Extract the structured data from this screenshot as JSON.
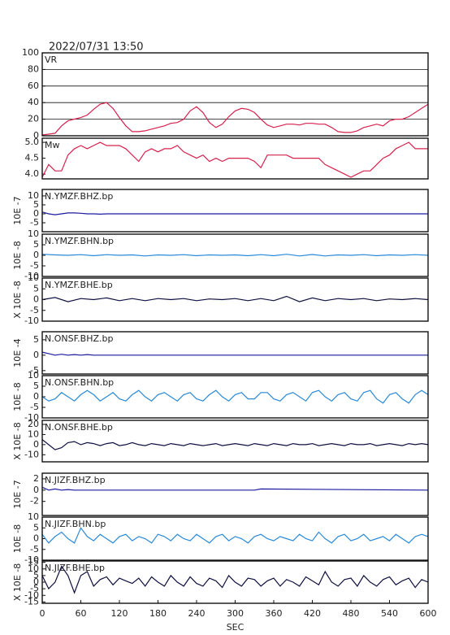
{
  "header": "2022/07/31 13:50",
  "chart_data": [
    {
      "type": "line",
      "title": "VR",
      "color": "#d6204e",
      "grid": true,
      "xlim": [
        0,
        600
      ],
      "ylim": [
        0,
        100
      ],
      "yticks": [
        0,
        20,
        40,
        60,
        80,
        100
      ],
      "x": [
        0,
        10,
        20,
        30,
        40,
        50,
        60,
        70,
        80,
        90,
        100,
        110,
        120,
        130,
        140,
        150,
        160,
        170,
        180,
        190,
        200,
        210,
        220,
        230,
        240,
        250,
        260,
        270,
        280,
        290,
        300,
        310,
        320,
        330,
        340,
        350,
        360,
        370,
        380,
        390,
        400,
        410,
        420,
        430,
        440,
        450,
        460,
        470,
        480,
        490,
        500,
        510,
        520,
        530,
        540,
        550,
        560,
        570,
        580,
        590,
        600
      ],
      "values": [
        1,
        2,
        3,
        12,
        18,
        20,
        22,
        25,
        32,
        38,
        40,
        33,
        22,
        12,
        5,
        5,
        6,
        8,
        10,
        12,
        15,
        16,
        20,
        30,
        35,
        28,
        16,
        10,
        14,
        23,
        30,
        33,
        32,
        28,
        20,
        13,
        10,
        12,
        14,
        14,
        13,
        15,
        15,
        14,
        14,
        10,
        5,
        4,
        4,
        6,
        10,
        12,
        14,
        12,
        18,
        20,
        20,
        23,
        28,
        33,
        38
      ]
    },
    {
      "type": "line",
      "title": "Mw",
      "color": "#d6204e",
      "xlim": [
        0,
        600
      ],
      "ylim": [
        3.85,
        5.13
      ],
      "yticks": [
        {
          "value": 4,
          "label": "4.0"
        },
        4.5,
        {
          "value": 5,
          "label": "5.0"
        }
      ],
      "x": [
        0,
        10,
        20,
        30,
        40,
        50,
        60,
        70,
        80,
        90,
        100,
        110,
        120,
        130,
        140,
        150,
        160,
        170,
        180,
        190,
        200,
        210,
        220,
        230,
        240,
        250,
        260,
        270,
        280,
        290,
        300,
        310,
        320,
        330,
        340,
        350,
        360,
        370,
        380,
        390,
        400,
        410,
        420,
        430,
        440,
        450,
        460,
        470,
        480,
        490,
        500,
        510,
        520,
        530,
        540,
        550,
        560,
        570,
        580,
        590,
        600
      ],
      "values": [
        3.9,
        4.3,
        4.1,
        4.1,
        4.6,
        4.8,
        4.9,
        4.8,
        4.9,
        5.0,
        4.9,
        4.9,
        4.9,
        4.8,
        4.6,
        4.4,
        4.7,
        4.8,
        4.7,
        4.8,
        4.8,
        4.9,
        4.7,
        4.6,
        4.5,
        4.6,
        4.4,
        4.5,
        4.4,
        4.5,
        4.5,
        4.5,
        4.5,
        4.4,
        4.2,
        4.6,
        4.6,
        4.6,
        4.6,
        4.5,
        4.5,
        4.5,
        4.5,
        4.5,
        4.3,
        4.2,
        4.1,
        4.0,
        3.9,
        4.0,
        4.1,
        4.1,
        4.3,
        4.5,
        4.6,
        4.8,
        4.9,
        5.0,
        4.8,
        4.8,
        4.8
      ]
    },
    {
      "type": "line",
      "title": "N.YMZF.BHZ.bp",
      "ylabel": "10E -7",
      "color": "#1a1aa0",
      "xlim": [
        0,
        600
      ],
      "ylim": [
        -10,
        13.6
      ],
      "yticks": [
        -5,
        0,
        5,
        10
      ],
      "x": [
        0,
        10,
        20,
        30,
        40,
        50,
        60,
        70,
        80,
        90,
        100,
        600
      ],
      "values": [
        1,
        0,
        -0.5,
        0,
        0.5,
        0.5,
        0.3,
        0,
        0,
        -0.2,
        0,
        0
      ]
    },
    {
      "type": "line",
      "title": "N.YMZF.BHN.bp",
      "ylabel": "10E -8",
      "color": "#2a8ad8",
      "xlim": [
        0,
        600
      ],
      "ylim": [
        -10,
        10
      ],
      "yticks": [
        -10,
        -5,
        0,
        5,
        10
      ],
      "x": [
        0,
        20,
        40,
        60,
        80,
        100,
        120,
        140,
        160,
        180,
        200,
        220,
        240,
        260,
        280,
        300,
        320,
        340,
        360,
        380,
        400,
        420,
        440,
        460,
        480,
        500,
        520,
        540,
        560,
        580,
        600
      ],
      "values": [
        0.5,
        0.2,
        0,
        0.3,
        -0.2,
        0.3,
        0,
        0.2,
        -0.3,
        0.2,
        0,
        0.3,
        -0.2,
        0.2,
        0,
        0.2,
        -0.2,
        0.3,
        -0.2,
        0.5,
        -0.3,
        0.4,
        -0.3,
        0.2,
        0,
        0.3,
        -0.2,
        0.2,
        0,
        0.3,
        0
      ]
    },
    {
      "type": "line",
      "title": "N.YMZF.BHE.bp",
      "ylabel": "X 10E -8",
      "color": "#101040",
      "xlim": [
        0,
        600
      ],
      "ylim": [
        -10,
        10
      ],
      "yticks": [
        -10,
        -5,
        0,
        5,
        10
      ],
      "x": [
        0,
        20,
        40,
        60,
        80,
        100,
        120,
        140,
        160,
        180,
        200,
        220,
        240,
        260,
        280,
        300,
        320,
        340,
        360,
        380,
        400,
        420,
        440,
        460,
        480,
        500,
        520,
        540,
        560,
        580,
        600
      ],
      "values": [
        0,
        1,
        -1,
        0.5,
        0,
        0.8,
        -0.5,
        0.5,
        -0.5,
        0.5,
        0,
        0.5,
        -0.5,
        0.3,
        0,
        0.5,
        -0.5,
        0.5,
        -0.5,
        1.5,
        -1,
        0.8,
        -0.5,
        0.5,
        0,
        0.5,
        -0.5,
        0.3,
        0,
        0.5,
        0
      ]
    },
    {
      "type": "line",
      "title": "N.ONSF.BHZ.bp",
      "ylabel": "10E -4",
      "color": "#1a1aa0",
      "xlim": [
        0,
        600
      ],
      "ylim": [
        -6.1,
        7.6
      ],
      "yticks": [
        -5,
        0,
        5
      ],
      "x": [
        0,
        10,
        20,
        30,
        40,
        50,
        60,
        70,
        80,
        90,
        600
      ],
      "values": [
        1,
        0.5,
        0,
        0.3,
        0,
        0.2,
        0,
        0.2,
        0,
        0,
        0
      ]
    },
    {
      "type": "line",
      "title": "N.ONSF.BHN.bp",
      "ylabel": "10E -8",
      "color": "#2a8ad8",
      "xlim": [
        0,
        600
      ],
      "ylim": [
        -10,
        10
      ],
      "yticks": [
        -10,
        -5,
        0,
        5,
        10
      ],
      "x": [
        0,
        10,
        20,
        30,
        40,
        50,
        60,
        70,
        80,
        90,
        100,
        110,
        120,
        130,
        140,
        150,
        160,
        170,
        180,
        190,
        200,
        210,
        220,
        230,
        240,
        250,
        260,
        270,
        280,
        290,
        300,
        310,
        320,
        330,
        340,
        350,
        360,
        370,
        380,
        390,
        400,
        410,
        420,
        430,
        440,
        450,
        460,
        470,
        480,
        490,
        500,
        510,
        520,
        530,
        540,
        550,
        560,
        570,
        580,
        590,
        600
      ],
      "values": [
        0,
        -2,
        -1,
        2,
        0,
        -2,
        1,
        3,
        1,
        -2,
        0,
        2,
        -1,
        -2,
        1,
        3,
        0,
        -2,
        1,
        2,
        0,
        -2,
        1,
        2,
        -1,
        -2,
        1,
        3,
        0,
        -2,
        1,
        2,
        -1,
        -1,
        2,
        2,
        -1,
        -2,
        1,
        2,
        0,
        -2,
        2,
        3,
        0,
        -2,
        1,
        2,
        -1,
        -2,
        2,
        3,
        -1,
        -3,
        1,
        2,
        -1,
        -3,
        1,
        3,
        1
      ]
    },
    {
      "type": "line",
      "title": "N.ONSF.BHE.bp",
      "ylabel": "X 10E -8",
      "color": "#101040",
      "xlim": [
        0,
        600
      ],
      "ylim": [
        -17,
        24
      ],
      "yticks": [
        -10,
        0,
        10,
        20
      ],
      "x": [
        0,
        10,
        20,
        30,
        40,
        50,
        60,
        70,
        80,
        90,
        100,
        110,
        120,
        130,
        140,
        150,
        160,
        170,
        180,
        190,
        200,
        210,
        220,
        230,
        240,
        250,
        260,
        270,
        280,
        290,
        300,
        310,
        320,
        330,
        340,
        350,
        360,
        370,
        380,
        390,
        400,
        410,
        420,
        430,
        440,
        450,
        460,
        470,
        480,
        490,
        500,
        510,
        520,
        530,
        540,
        550,
        560,
        570,
        580,
        590,
        600
      ],
      "values": [
        5,
        0,
        -5,
        -3,
        2,
        3,
        0,
        2,
        1,
        -1,
        1,
        2,
        -1,
        0,
        2,
        0,
        -1,
        1,
        0,
        -1,
        1,
        0,
        -1,
        1,
        0,
        -1,
        0,
        1,
        -1,
        0,
        1,
        0,
        -1,
        1,
        0,
        -1,
        1,
        0,
        -1,
        1,
        0,
        0,
        1,
        -1,
        0,
        1,
        0,
        -1,
        1,
        0,
        0,
        1,
        -1,
        0,
        1,
        0,
        -1,
        1,
        0,
        1,
        0
      ]
    },
    {
      "type": "line",
      "title": "N.JIZF.BHZ.bp",
      "ylabel": "10E -7",
      "color": "#1a1aa0",
      "xlim": [
        0,
        600
      ],
      "ylim": [
        -4.5,
        3
      ],
      "yticks": [
        -2,
        0,
        2
      ],
      "x": [
        0,
        10,
        20,
        30,
        40,
        50,
        60,
        330,
        340,
        600
      ],
      "values": [
        0.5,
        0,
        0.2,
        0,
        0.1,
        0,
        0,
        0,
        0.2,
        0
      ]
    },
    {
      "type": "line",
      "title": "N.JIZF.BHN.bp",
      "ylabel": "10E -8",
      "color": "#2a8ad8",
      "xlim": [
        0,
        600
      ],
      "ylim": [
        -10,
        10
      ],
      "yticks": [
        -10,
        -5,
        0,
        5,
        10
      ],
      "x": [
        0,
        10,
        20,
        30,
        40,
        50,
        60,
        70,
        80,
        90,
        100,
        110,
        120,
        130,
        140,
        150,
        160,
        170,
        180,
        190,
        200,
        210,
        220,
        230,
        240,
        250,
        260,
        270,
        280,
        290,
        300,
        310,
        320,
        330,
        340,
        350,
        360,
        370,
        380,
        390,
        400,
        410,
        420,
        430,
        440,
        450,
        460,
        470,
        480,
        490,
        500,
        510,
        520,
        530,
        540,
        550,
        560,
        570,
        580,
        590,
        600
      ],
      "values": [
        2,
        -2,
        1,
        3,
        0,
        -2,
        5,
        1,
        -1,
        2,
        0,
        -2,
        1,
        2,
        -1,
        1,
        0,
        -2,
        2,
        1,
        -1,
        2,
        0,
        -1,
        2,
        0,
        -2,
        1,
        2,
        -1,
        1,
        0,
        -2,
        1,
        2,
        0,
        -1,
        1,
        0,
        -1,
        2,
        0,
        -1,
        3,
        0,
        -2,
        1,
        2,
        -1,
        0,
        2,
        -1,
        0,
        1,
        -1,
        2,
        0,
        -2,
        1,
        2,
        1
      ]
    },
    {
      "type": "line",
      "title": "N.JIZF.BHE.bp",
      "ylabel": "X 10E -8",
      "xlabel": "SEC",
      "color": "#101040",
      "xlim": [
        0,
        600
      ],
      "ylim": [
        -16,
        16
      ],
      "yticks": [
        -15,
        -10,
        -5,
        0,
        5,
        10,
        15
      ],
      "xticks": [
        0,
        60,
        120,
        180,
        240,
        300,
        360,
        420,
        480,
        540,
        600
      ],
      "x": [
        0,
        10,
        20,
        30,
        40,
        50,
        60,
        70,
        80,
        90,
        100,
        110,
        120,
        130,
        140,
        150,
        160,
        170,
        180,
        190,
        200,
        210,
        220,
        230,
        240,
        250,
        260,
        270,
        280,
        290,
        300,
        310,
        320,
        330,
        340,
        350,
        360,
        370,
        380,
        390,
        400,
        410,
        420,
        430,
        440,
        450,
        460,
        470,
        480,
        490,
        500,
        510,
        520,
        530,
        540,
        550,
        560,
        570,
        580,
        590,
        600
      ],
      "values": [
        5,
        -5,
        0,
        12,
        5,
        -8,
        5,
        8,
        -3,
        2,
        4,
        -2,
        3,
        1,
        -1,
        3,
        -3,
        4,
        0,
        -3,
        5,
        0,
        -3,
        4,
        -1,
        -3,
        3,
        1,
        -4,
        5,
        0,
        -3,
        3,
        2,
        -3,
        1,
        3,
        -3,
        2,
        0,
        -3,
        4,
        1,
        -2,
        8,
        0,
        -3,
        2,
        3,
        -3,
        5,
        0,
        -3,
        2,
        4,
        -2,
        1,
        3,
        -4,
        2,
        0
      ]
    }
  ]
}
